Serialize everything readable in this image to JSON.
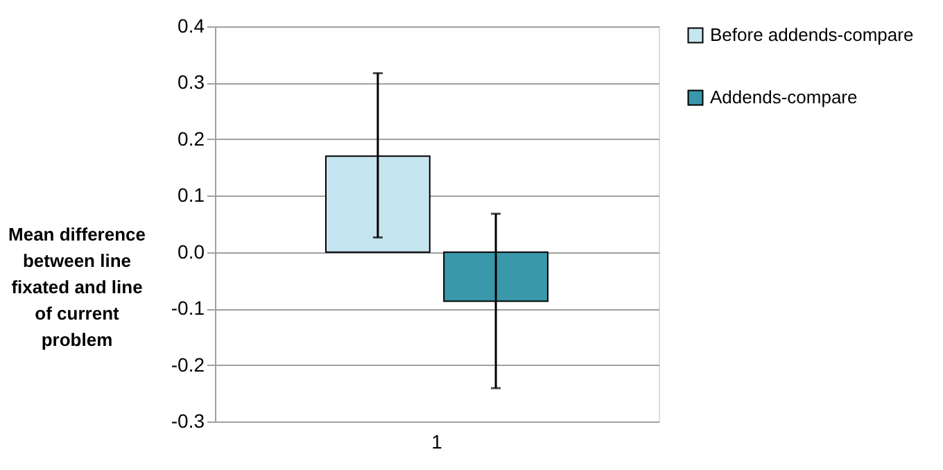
{
  "chart_data": {
    "type": "bar",
    "categories": [
      "1"
    ],
    "ylabel": "Mean difference between line fixated and line of current problem",
    "series": [
      {
        "name": "Before addends-compare",
        "color": "#c5e6f0",
        "values": [
          0.17
        ],
        "errors": [
          [
            0.026,
            0.317
          ]
        ]
      },
      {
        "name": "Addends-compare",
        "color": "#3a98ab",
        "values": [
          -0.087
        ],
        "errors": [
          [
            -0.241,
            0.068
          ]
        ]
      }
    ],
    "ylim": [
      -0.3,
      0.4
    ],
    "yticks": [
      -0.3,
      -0.2,
      -0.1,
      {
        "value": 0,
        "label": "0.0"
      },
      0.1,
      0.2,
      0.3,
      0.4
    ],
    "grid": "y",
    "legend": "right"
  }
}
